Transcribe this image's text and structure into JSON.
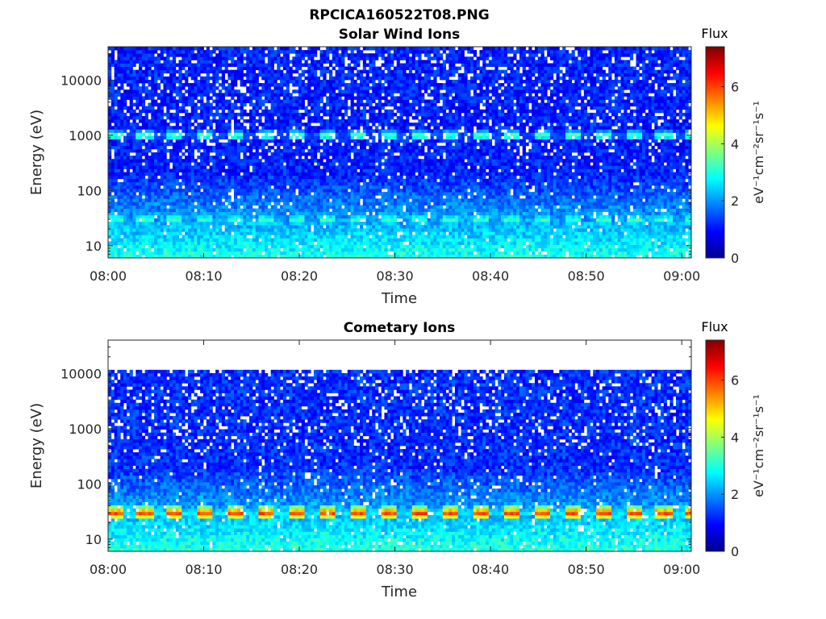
{
  "figure": {
    "title": "RPCICA160522T08.PNG"
  },
  "chart_data": [
    {
      "type": "heatmap",
      "title": "Solar Wind Ions",
      "xlabel": "Time",
      "ylabel": "Energy (eV)",
      "y_scale": "log",
      "ylim": [
        6,
        40000
      ],
      "xlim": [
        "08:00",
        "09:01"
      ],
      "x_ticks": [
        "08:00",
        "08:10",
        "08:20",
        "08:30",
        "08:40",
        "08:50",
        "09:00"
      ],
      "y_ticks": [
        "10",
        "100",
        "1000",
        "10000"
      ],
      "colorbar": {
        "label": "Flux",
        "units": "eV⁻¹cm⁻²sr⁻¹s⁻¹",
        "range": [
          0,
          7.4
        ],
        "ticks": [
          "0",
          "2",
          "4",
          "6"
        ],
        "colormap": "jet"
      },
      "bands": [
        {
          "energy_eV": 1000,
          "level": 3.6,
          "periodicity_min": 3.2
        },
        {
          "energy_eV": 30,
          "level": 3.3,
          "periodicity_min": 3.2
        },
        {
          "energy_eV": 10,
          "level": 2.3,
          "periodicity_min": null
        }
      ],
      "background_level": 0.7
    },
    {
      "type": "heatmap",
      "title": "Cometary Ions",
      "xlabel": "Time",
      "ylabel": "Energy (eV)",
      "y_scale": "log",
      "ylim": [
        6,
        40000
      ],
      "xlim": [
        "08:00",
        "09:01"
      ],
      "x_ticks": [
        "08:00",
        "08:10",
        "08:20",
        "08:30",
        "08:40",
        "08:50",
        "09:00"
      ],
      "y_ticks": [
        "10",
        "100",
        "1000",
        "10000"
      ],
      "colorbar": {
        "label": "Flux",
        "units": "eV⁻¹cm⁻²sr⁻¹s⁻¹",
        "range": [
          0,
          7.4
        ],
        "ticks": [
          "0",
          "2",
          "4",
          "6"
        ],
        "colormap": "jet"
      },
      "bands": [
        {
          "energy_eV": 30,
          "level": 6.2,
          "periodicity_min": 3.2
        },
        {
          "energy_eV": 10,
          "level": 2.4,
          "periodicity_min": null
        }
      ],
      "background_level": 0.8,
      "data_upper_energy_eV": 11000
    }
  ]
}
